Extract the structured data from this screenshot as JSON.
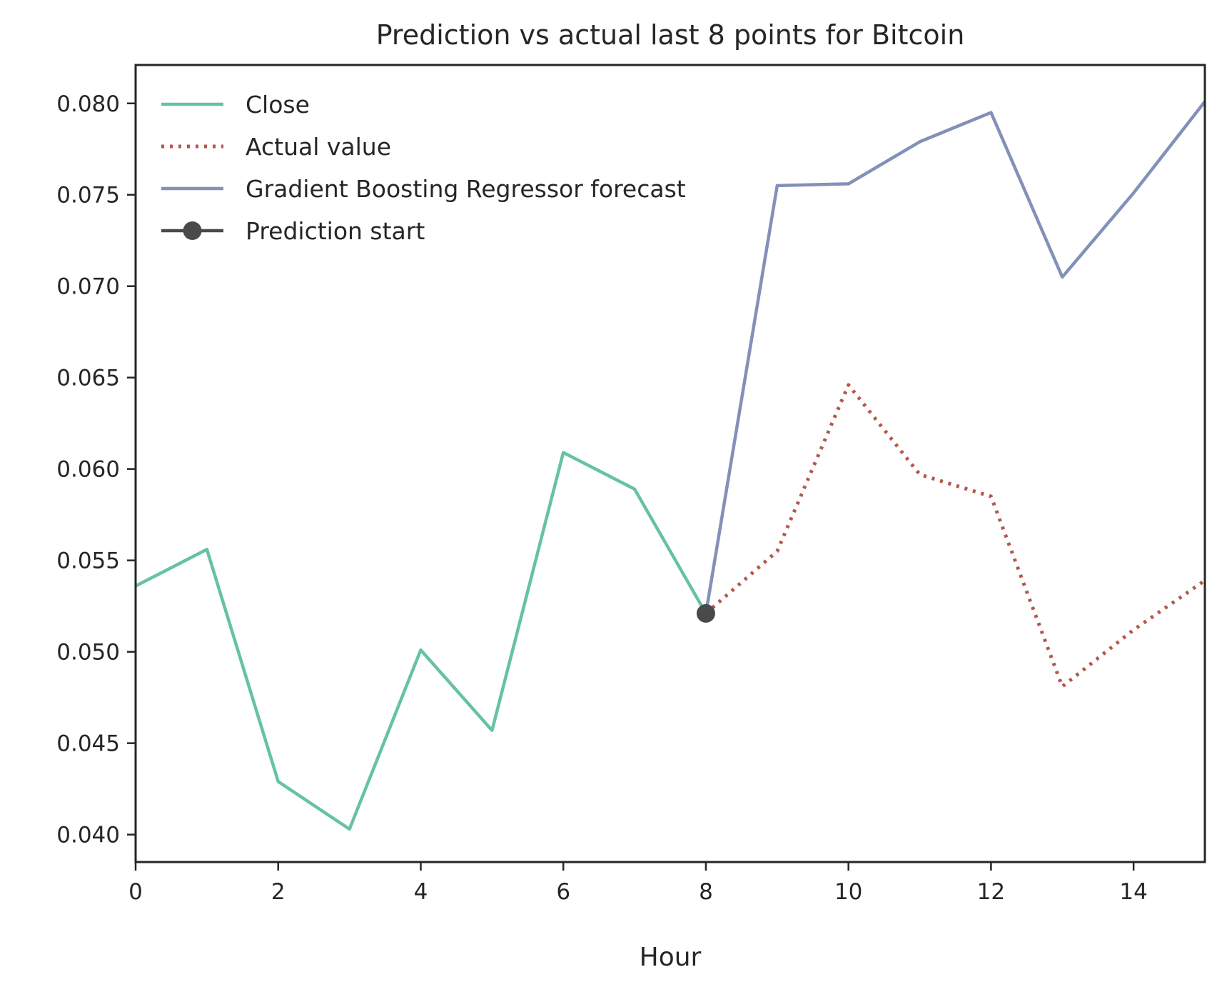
{
  "chart_data": {
    "type": "line",
    "title": "Prediction vs actual last 8 points for Bitcoin",
    "xlabel": "Hour",
    "ylabel": "",
    "xlim": [
      0,
      15
    ],
    "ylim": [
      0.0385,
      0.0821
    ],
    "xticks": [
      0,
      2,
      4,
      6,
      8,
      10,
      12,
      14
    ],
    "xtick_labels": [
      "0",
      "2",
      "4",
      "6",
      "8",
      "10",
      "12",
      "14"
    ],
    "yticks": [
      0.04,
      0.045,
      0.05,
      0.055,
      0.06,
      0.065,
      0.07,
      0.075,
      0.08
    ],
    "ytick_labels": [
      "0.040",
      "0.045",
      "0.050",
      "0.055",
      "0.060",
      "0.065",
      "0.070",
      "0.075",
      "0.080"
    ],
    "grid": false,
    "legend_position": "upper-left",
    "series": [
      {
        "name": "Close",
        "style": "solid",
        "color": "#66c2a5",
        "x": [
          0,
          1,
          2,
          3,
          4,
          5,
          6,
          7,
          8
        ],
        "y": [
          0.0536,
          0.0556,
          0.0429,
          0.0403,
          0.0501,
          0.0457,
          0.0609,
          0.0589,
          0.0521
        ]
      },
      {
        "name": "Actual value",
        "style": "dotted",
        "color": "#b5564a",
        "x": [
          8,
          9,
          10,
          11,
          12,
          13,
          14,
          15
        ],
        "y": [
          0.0521,
          0.0555,
          0.0646,
          0.0597,
          0.0585,
          0.0481,
          0.0512,
          0.0539
        ]
      },
      {
        "name": "Gradient Boosting Regressor forecast",
        "style": "solid",
        "color": "#8390b8",
        "x": [
          8,
          9,
          10,
          11,
          12,
          13,
          14,
          15
        ],
        "y": [
          0.0521,
          0.0755,
          0.0756,
          0.0779,
          0.0795,
          0.0705,
          0.0751,
          0.0801
        ]
      },
      {
        "name": "Prediction start",
        "style": "marker",
        "color": "#4a4a4a",
        "x": [
          8
        ],
        "y": [
          0.0521
        ]
      }
    ]
  }
}
